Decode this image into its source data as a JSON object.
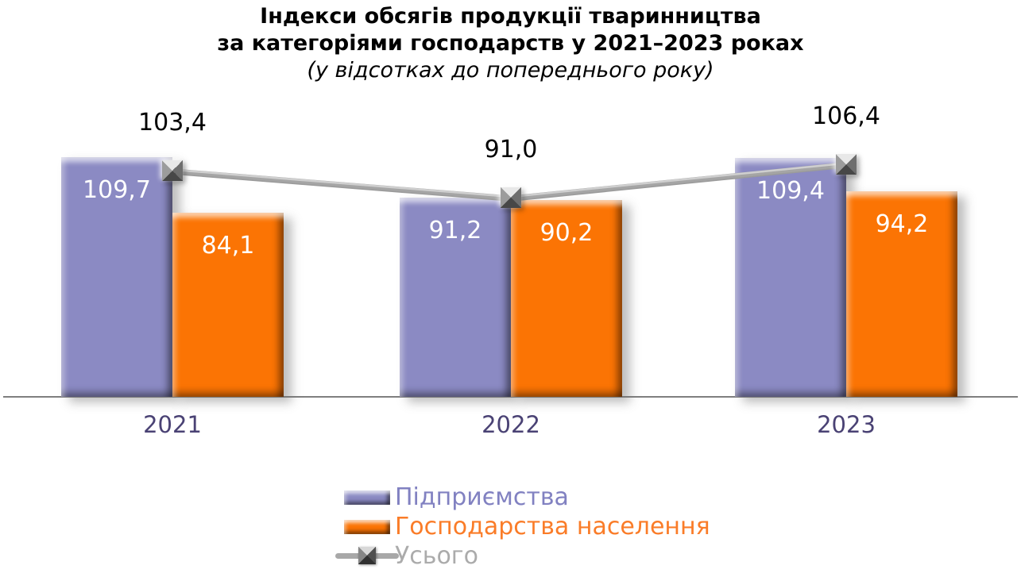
{
  "title": {
    "line1": "Індекси обсягів продукції тваринництва",
    "line2": "за категоріями господарств у 2021–2023 роках",
    "subtitle": "(у відсотках до попереднього року)"
  },
  "chart_data": {
    "type": "bar",
    "subtype": "grouped-3d-bars-with-overlay-line",
    "title": "Індекси обсягів продукції тваринництва за категоріями господарств у 2021–2023 роках",
    "subtitle": "(у відсотках до попереднього року)",
    "categories": [
      "2021",
      "2022",
      "2023"
    ],
    "series": [
      {
        "name": "Підприємства",
        "type": "bar",
        "color": "#8B8AC3",
        "values": [
          109.7,
          91.2,
          109.4
        ],
        "display_labels": [
          "109,7",
          "91,2",
          "109,4"
        ]
      },
      {
        "name": "Господарства населення",
        "type": "bar",
        "color": "#FB7404",
        "values": [
          84.1,
          90.2,
          94.2
        ],
        "display_labels": [
          "84,1",
          "90,2",
          "94,2"
        ]
      },
      {
        "name": "Усього",
        "type": "line",
        "color": "#A5A5A5",
        "values": [
          103.4,
          91.0,
          106.4
        ],
        "display_labels": [
          "103,4",
          "91,0",
          "106,4"
        ]
      }
    ],
    "ylim": [
      0,
      116
    ],
    "grid": false,
    "y_axis_visible": false,
    "legend_position": "bottom-center",
    "bar_label_color": "#FFFFFF",
    "line_label_color": "#000000",
    "category_label_color": "#4A4274",
    "axis_line_color": "#7F7F7F",
    "legend_text_colors": [
      "#8181C1",
      "#FA7C28",
      "#ABABAB"
    ]
  }
}
